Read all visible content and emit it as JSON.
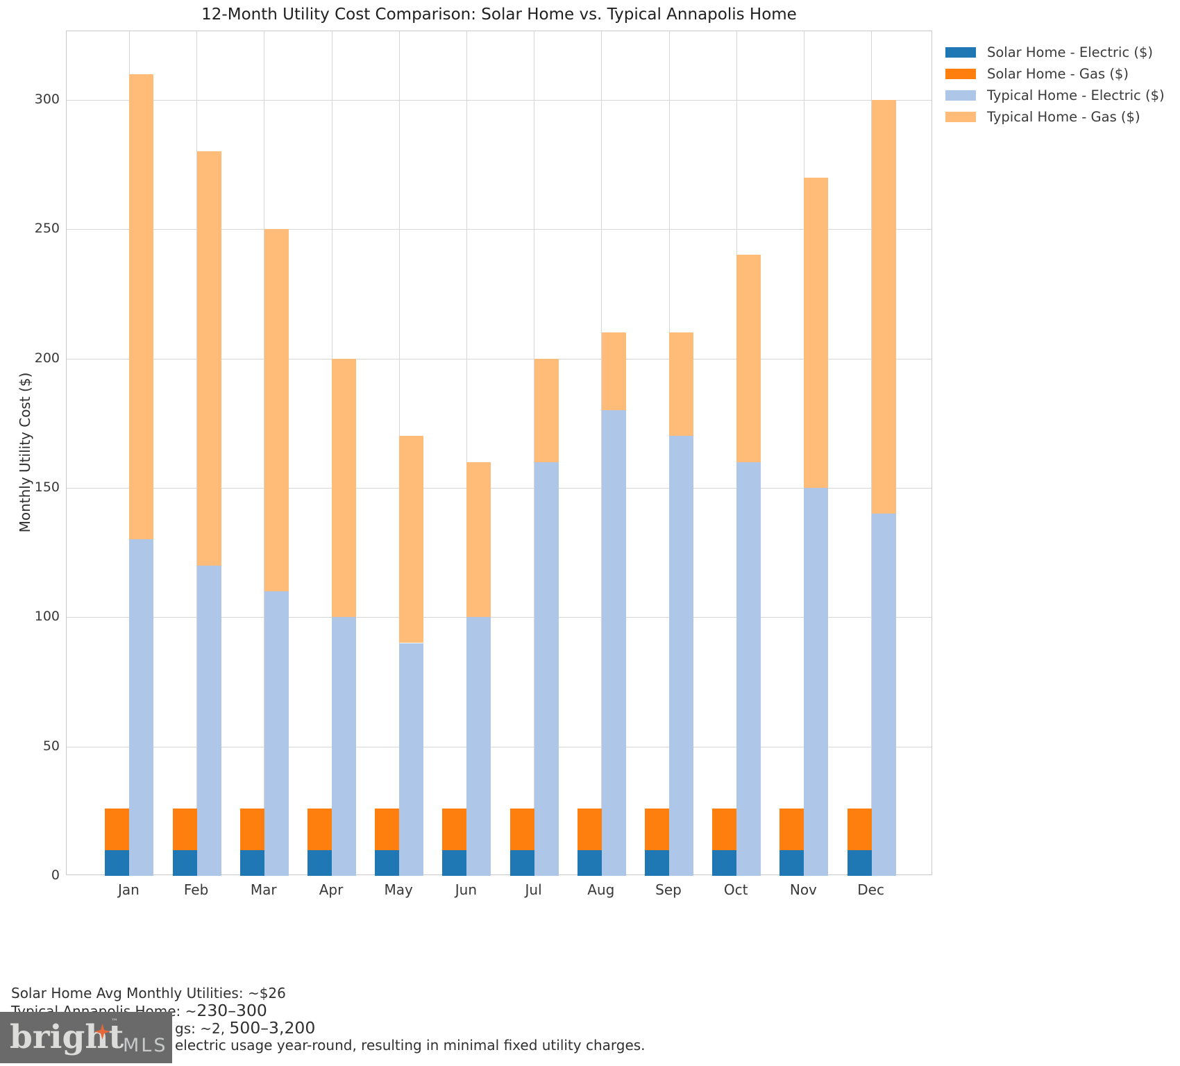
{
  "chart_data": {
    "type": "bar",
    "stacked": true,
    "grouped": true,
    "title": "12-Month Utility Cost Comparison: Solar Home vs. Typical Annapolis Home",
    "xlabel": "",
    "ylabel": "Monthly Utility Cost ($)",
    "categories": [
      "Jan",
      "Feb",
      "Mar",
      "Apr",
      "May",
      "Jun",
      "Jul",
      "Aug",
      "Sep",
      "Oct",
      "Nov",
      "Dec"
    ],
    "series": [
      {
        "name": "Solar Home - Electric ($)",
        "group": "solar",
        "color": "#1f77b4",
        "values": [
          10,
          10,
          10,
          10,
          10,
          10,
          10,
          10,
          10,
          10,
          10,
          10
        ]
      },
      {
        "name": "Solar Home - Gas ($)",
        "group": "solar",
        "color": "#ff7f0e",
        "values": [
          16,
          16,
          16,
          16,
          16,
          16,
          16,
          16,
          16,
          16,
          16,
          16
        ]
      },
      {
        "name": "Typical Home - Electric ($)",
        "group": "typical",
        "color": "#aec7e8",
        "values": [
          130,
          120,
          110,
          100,
          90,
          100,
          160,
          180,
          170,
          160,
          150,
          140
        ]
      },
      {
        "name": "Typical Home - Gas ($)",
        "group": "typical",
        "color": "#ffbb78",
        "values": [
          180,
          160,
          140,
          100,
          80,
          60,
          40,
          30,
          40,
          80,
          120,
          160
        ]
      }
    ],
    "group_totals": {
      "solar": [
        26,
        26,
        26,
        26,
        26,
        26,
        26,
        26,
        26,
        26,
        26,
        26
      ],
      "typical": [
        310,
        280,
        250,
        200,
        170,
        160,
        200,
        210,
        210,
        240,
        270,
        300
      ]
    },
    "ylim": [
      0,
      326.5
    ],
    "yticks": [
      0,
      50,
      100,
      150,
      200,
      250,
      300
    ],
    "grid": true,
    "legend_position": "upper-right-outside",
    "grid_color": "#d6d6d6"
  },
  "footnote": {
    "lines": [
      {
        "indent": "none",
        "segments": [
          {
            "text": "Solar Home Avg Monthly Utilities: ~$26",
            "big": false
          }
        ]
      },
      {
        "indent": "none",
        "segments": [
          {
            "text": "Typical Annapolis Home: ~",
            "big": false
          },
          {
            "text": "230–300",
            "big": true
          }
        ]
      },
      {
        "indent": "logo",
        "segments": [
          {
            "text": "gs: ~2, ",
            "big": false
          },
          {
            "text": "500–3,200",
            "big": true
          }
        ]
      },
      {
        "indent": "logo",
        "segments": [
          {
            "text": "electric usage year-round, resulting in minimal fixed utility charges.",
            "big": false
          }
        ]
      }
    ]
  },
  "logo": {
    "brand": "bright",
    "trademark": "™",
    "suffix": "MLS",
    "colors": {
      "background": "#6a6a6a",
      "brand_text": "#dcdcda",
      "suffix_text": "#c7c9ca",
      "star": "#e8673a"
    }
  }
}
